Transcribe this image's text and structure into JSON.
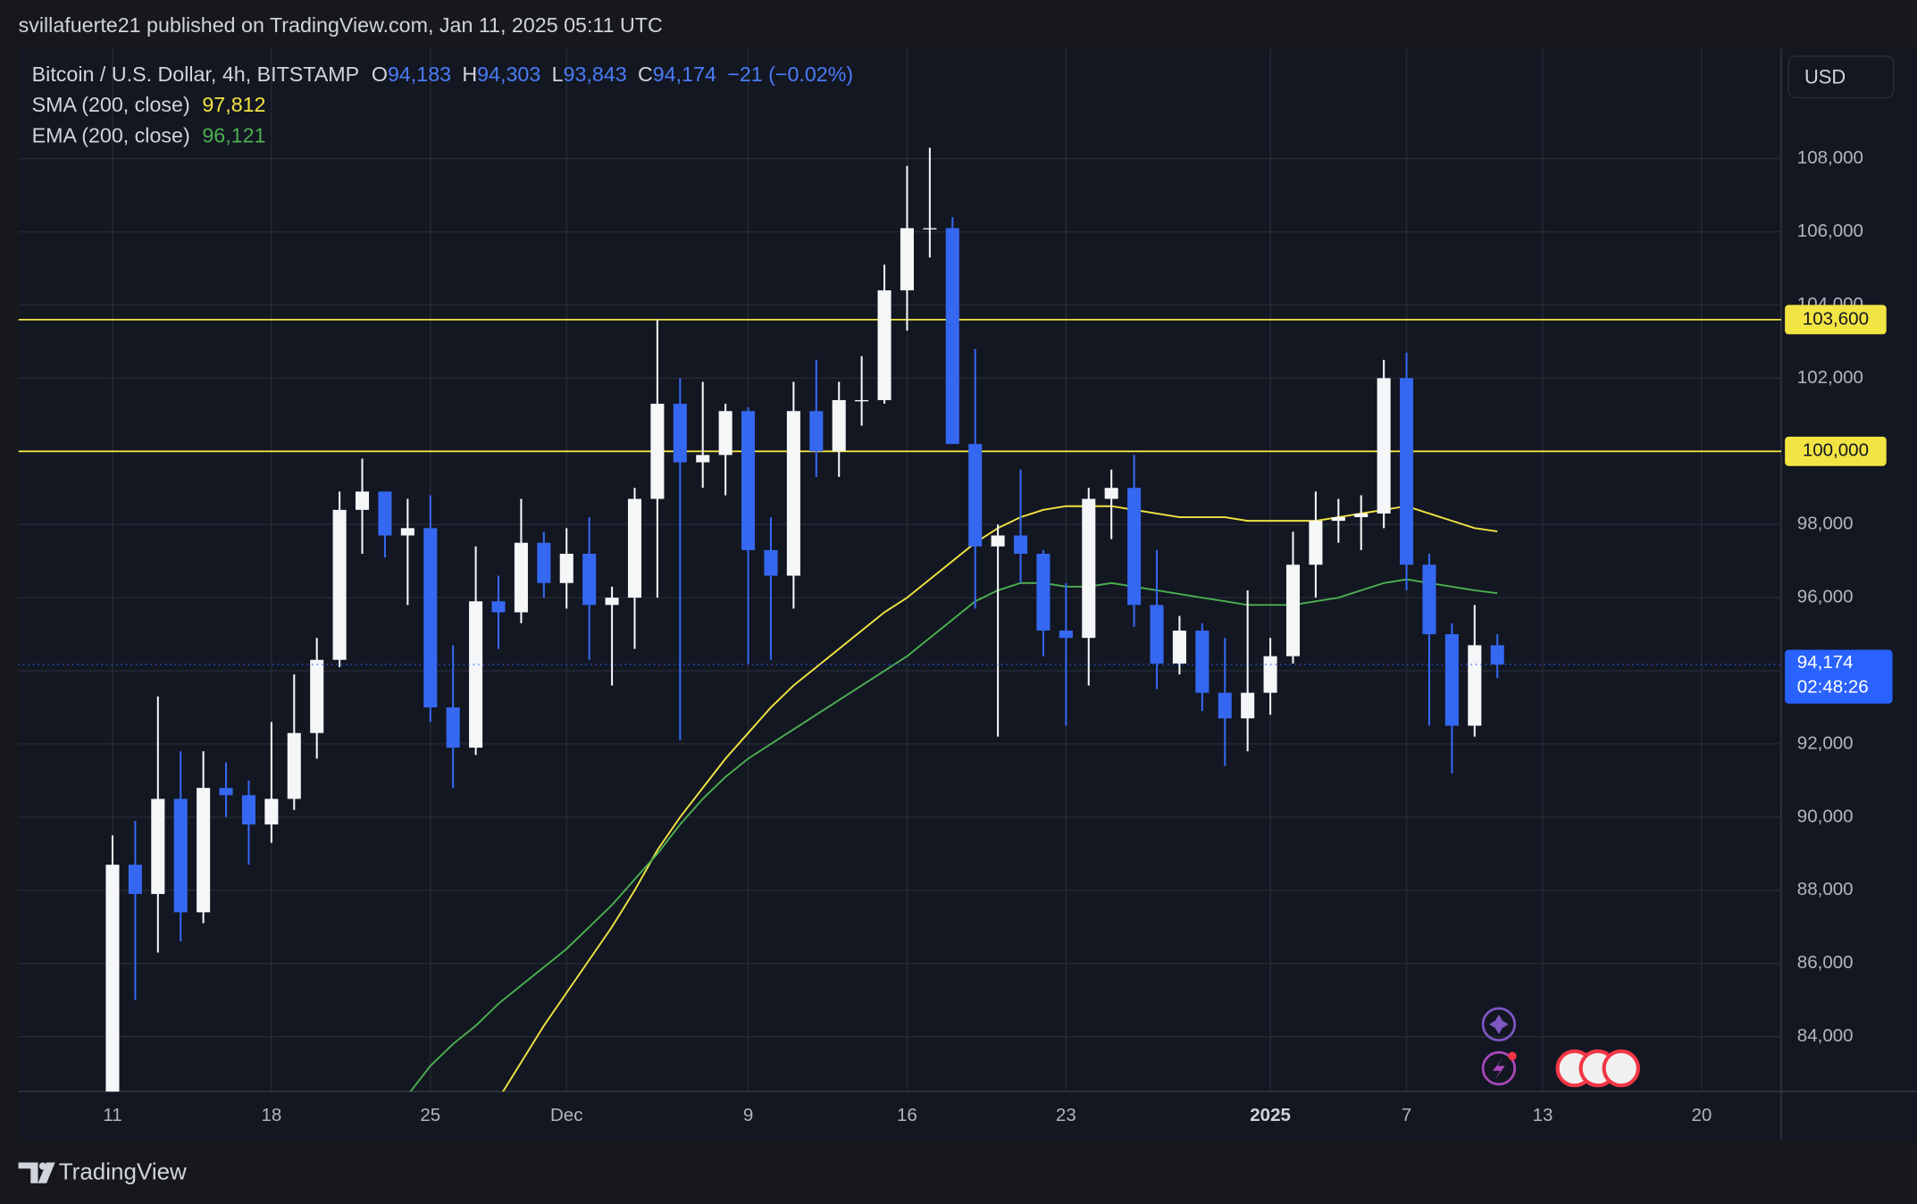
{
  "header": {
    "attribution": "svillafuerte21 published on TradingView.com, Jan 11, 2025 05:11 UTC",
    "brand": "TradingView",
    "currency": "USD"
  },
  "chart_data": {
    "type": "candlestick",
    "title": "Bitcoin / U.S. Dollar, 4h, BITSTAMP",
    "ohlc_legend": [
      {
        "key": "O",
        "value": "94,183"
      },
      {
        "key": "H",
        "value": "94,303"
      },
      {
        "key": "L",
        "value": "93,843"
      },
      {
        "key": "C",
        "value": "94,174"
      }
    ],
    "change": "−21 (−0.02%)",
    "categories": [
      "11",
      null,
      null,
      null,
      null,
      null,
      null,
      "18",
      null,
      null,
      null,
      null,
      null,
      null,
      "25",
      null,
      null,
      null,
      null,
      null,
      "Dec",
      null,
      null,
      null,
      null,
      null,
      null,
      null,
      "9",
      null,
      null,
      null,
      null,
      null,
      null,
      "16",
      null,
      null,
      null,
      null,
      null,
      null,
      "23",
      null,
      null,
      null,
      null,
      null,
      null,
      null,
      null,
      "2025",
      null,
      null,
      null,
      null,
      null,
      "7",
      null,
      null,
      null,
      null,
      null,
      "13",
      null,
      null,
      null,
      null,
      null,
      null,
      "20"
    ],
    "open": [
      80400,
      88700,
      87900,
      90500,
      87400,
      90800,
      90600,
      89800,
      90500,
      92300,
      94300,
      98400,
      98900,
      97700,
      97900,
      93000,
      91900,
      95900,
      95600,
      97500,
      96400,
      97200,
      95800,
      96000,
      98700,
      101300,
      99700,
      99900,
      101100,
      97300,
      96600,
      101100,
      100000,
      101400,
      101400,
      104400,
      106100,
      106100,
      100200,
      97400,
      97700,
      97200,
      95100,
      94900,
      98700,
      99000,
      95800,
      94200,
      95100,
      93400,
      92700,
      93400,
      94400,
      96900,
      98100,
      98200,
      98300,
      102000,
      96900,
      95000,
      92500,
      94700,
      null,
      null,
      null,
      null,
      null,
      null,
      null,
      null,
      null
    ],
    "high": [
      89500,
      89900,
      93300,
      91800,
      91800,
      91500,
      91000,
      92600,
      93900,
      94900,
      98900,
      99800,
      98900,
      98700,
      98800,
      94700,
      97400,
      96600,
      98700,
      97800,
      97900,
      98200,
      96300,
      99000,
      103600,
      102000,
      101900,
      101300,
      101200,
      98200,
      101900,
      102500,
      101900,
      102600,
      105100,
      107800,
      108300,
      106400,
      102800,
      98000,
      99500,
      97300,
      96400,
      99000,
      99500,
      99900,
      97300,
      95500,
      95300,
      94900,
      96200,
      94900,
      97800,
      98900,
      98700,
      98800,
      102500,
      102700,
      97200,
      95300,
      95800,
      95000,
      null,
      null,
      null,
      null,
      null,
      null,
      null,
      null,
      null
    ],
    "low": [
      80200,
      85000,
      86300,
      86600,
      87100,
      90000,
      88700,
      89300,
      90200,
      91600,
      94100,
      97200,
      97100,
      95800,
      92600,
      90800,
      91700,
      94600,
      95300,
      96000,
      95700,
      94300,
      93600,
      94600,
      96000,
      92100,
      99000,
      98800,
      94200,
      94300,
      95700,
      99300,
      99300,
      100700,
      101300,
      103300,
      105300,
      100200,
      95700,
      92200,
      96400,
      94400,
      92500,
      93600,
      97600,
      95200,
      93500,
      93900,
      92900,
      91400,
      91800,
      92800,
      94200,
      96000,
      97500,
      97300,
      97900,
      96200,
      92500,
      91200,
      92200,
      93800,
      null,
      null,
      null,
      null,
      null,
      null,
      null,
      null,
      null
    ],
    "close": [
      88700,
      87900,
      90500,
      87400,
      90800,
      90600,
      89800,
      90500,
      92300,
      94300,
      98400,
      98900,
      97700,
      97900,
      93000,
      91900,
      95900,
      95600,
      97500,
      96400,
      97200,
      95800,
      96000,
      98700,
      101300,
      99700,
      99900,
      101100,
      97300,
      96600,
      101100,
      100000,
      101400,
      101400,
      104400,
      106100,
      106100,
      100200,
      97400,
      97700,
      97200,
      95100,
      94900,
      98700,
      99000,
      95800,
      94200,
      95100,
      93400,
      92700,
      93400,
      94400,
      96900,
      98100,
      98200,
      98300,
      102000,
      96900,
      95000,
      92500,
      94700,
      94174,
      null,
      null,
      null,
      null,
      null,
      null,
      null,
      null,
      null
    ],
    "up_color": "#f5f6f8",
    "down_color": "#3568f0",
    "series": [
      {
        "name": "SMA (200, close)",
        "color": "#f2e442",
        "legend_value": "97,812",
        "values": [
          null,
          null,
          null,
          null,
          null,
          null,
          null,
          null,
          null,
          null,
          null,
          null,
          null,
          null,
          null,
          null,
          null,
          82300,
          83300,
          84300,
          85200,
          86100,
          87000,
          88000,
          89100,
          90000,
          90800,
          91600,
          92300,
          93000,
          93600,
          94100,
          94600,
          95100,
          95600,
          96000,
          96500,
          97000,
          97500,
          97900,
          98200,
          98400,
          98500,
          98500,
          98500,
          98400,
          98300,
          98200,
          98200,
          98200,
          98100,
          98100,
          98100,
          98100,
          98200,
          98300,
          98400,
          98500,
          98300,
          98100,
          97900,
          97812,
          null,
          null,
          null,
          null,
          null,
          null,
          null,
          null,
          null
        ]
      },
      {
        "name": "EMA (200, close)",
        "color": "#4caf50",
        "legend_value": "96,121",
        "values": [
          null,
          null,
          null,
          null,
          null,
          null,
          null,
          null,
          null,
          null,
          null,
          null,
          null,
          82400,
          83200,
          83800,
          84300,
          84900,
          85400,
          85900,
          86400,
          87000,
          87600,
          88300,
          89000,
          89800,
          90500,
          91100,
          91600,
          92000,
          92400,
          92800,
          93200,
          93600,
          94000,
          94400,
          94900,
          95400,
          95900,
          96200,
          96400,
          96400,
          96300,
          96300,
          96400,
          96300,
          96200,
          96100,
          96000,
          95900,
          95800,
          95800,
          95800,
          95900,
          96000,
          96200,
          96400,
          96500,
          96400,
          96300,
          96200,
          96121,
          null,
          null,
          null,
          null,
          null,
          null,
          null,
          null,
          null
        ]
      }
    ],
    "levels": [
      {
        "value": 103600,
        "label": "103,600",
        "color": "#f2e442"
      },
      {
        "value": 100000,
        "label": "100,000",
        "color": "#f2e442"
      }
    ],
    "last_price": {
      "value": 94174,
      "label": "94,174",
      "countdown": "02:48:26",
      "color": "#2962ff"
    },
    "ylim": [
      82500,
      111000
    ],
    "yticks": [
      {
        "value": 84000,
        "label": "84,000"
      },
      {
        "value": 86000,
        "label": "86,000"
      },
      {
        "value": 88000,
        "label": "88,000"
      },
      {
        "value": 90000,
        "label": "90,000"
      },
      {
        "value": 92000,
        "label": "92,000"
      },
      {
        "value": 94000,
        "label": "94,000"
      },
      {
        "value": 96000,
        "label": "96,000"
      },
      {
        "value": 98000,
        "label": "98,000"
      },
      {
        "value": 100000,
        "label": "100,000"
      },
      {
        "value": 102000,
        "label": "102,000"
      },
      {
        "value": 104000,
        "label": "104,000"
      },
      {
        "value": 106000,
        "label": "106,000"
      },
      {
        "value": 108000,
        "label": "108,000"
      }
    ],
    "grid": true
  }
}
